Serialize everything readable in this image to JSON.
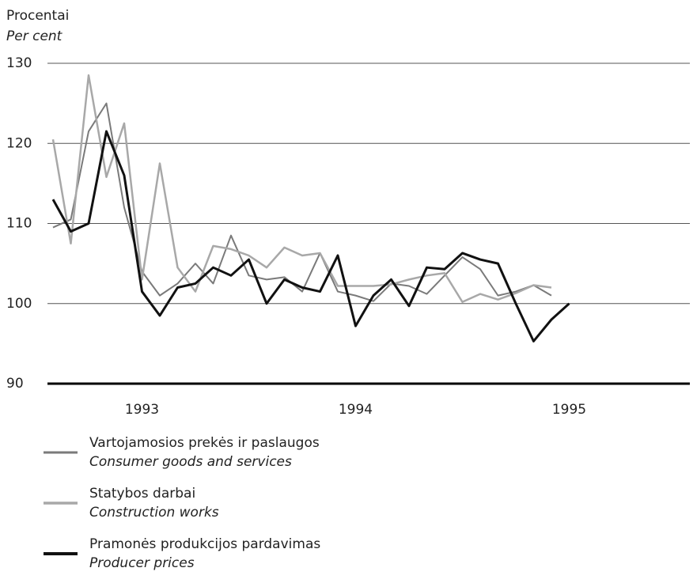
{
  "chart_data": {
    "type": "line",
    "y_label": "Procentai",
    "y_label_en": "Per cent",
    "categories": [
      null,
      null,
      null,
      null,
      null,
      "1993",
      null,
      null,
      null,
      null,
      null,
      null,
      null,
      null,
      null,
      null,
      null,
      "1994",
      null,
      null,
      null,
      null,
      null,
      null,
      null,
      null,
      null,
      null,
      null,
      "1995"
    ],
    "ylim": [
      90,
      130
    ],
    "yticks": [
      90,
      100,
      110,
      120,
      130
    ],
    "grid": true,
    "series": [
      {
        "name": "Vartojamosios prekės ir paslaugos",
        "name_en": "Consumer goods and services",
        "color": "#7a7a7a",
        "width": 2,
        "values": [
          109.5,
          110.5,
          121.5,
          125,
          112,
          104,
          101,
          102.5,
          105,
          102.5,
          108.5,
          103.5,
          103,
          103.3,
          101.5,
          106.3,
          101.5,
          101,
          100.3,
          102.5,
          102.2,
          101.2,
          103.5,
          105.8,
          104.3,
          101,
          101.5,
          102.3,
          101,
          null
        ]
      },
      {
        "name": "Statybos darbai",
        "name_en": "Construction works",
        "color": "#a8a8a8",
        "width": 2.5,
        "values": [
          120.5,
          107.5,
          128.5,
          115.8,
          122.5,
          103,
          117.5,
          104.5,
          101.5,
          107.2,
          106.8,
          106,
          104.5,
          107,
          106,
          106.3,
          102.2,
          102.2,
          102.2,
          102.4,
          103,
          103.5,
          103.8,
          100.2,
          101.2,
          100.5,
          101.3,
          102.3,
          102,
          null
        ]
      },
      {
        "name": "Pramonės produkcijos pardavimas",
        "name_en": "Producer prices",
        "color": "#111111",
        "width": 3,
        "values": [
          113,
          109,
          110,
          121.5,
          116,
          101.5,
          98.5,
          102,
          102.5,
          104.5,
          103.5,
          105.5,
          100,
          103,
          102,
          101.5,
          106,
          97.2,
          101,
          103,
          99.7,
          104.5,
          104.3,
          106.3,
          105.5,
          105,
          100,
          95.3,
          98,
          100
        ]
      }
    ]
  }
}
